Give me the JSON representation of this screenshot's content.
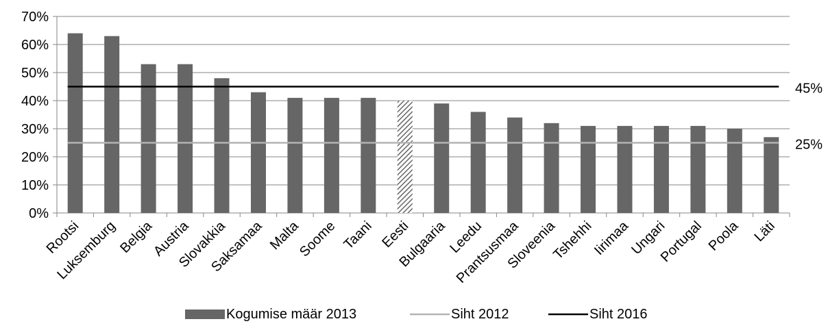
{
  "chart_data": {
    "type": "bar",
    "categories": [
      "Rootsi",
      "Luksemburg",
      "Belgia",
      "Austria",
      "Slovakkia",
      "Saksamaa",
      "Malta",
      "Soome",
      "Taani",
      "Eesti",
      "Bulgaaria",
      "Leedu",
      "Prantsusmaa",
      "Sloveenia",
      "Tshehhi",
      "Iirimaa",
      "Ungari",
      "Portugal",
      "Poola",
      "Läti"
    ],
    "series": [
      {
        "name": "Kogumise määr 2013",
        "values": [
          64,
          63,
          53,
          53,
          48,
          43,
          41,
          41,
          41,
          40,
          39,
          36,
          34,
          32,
          31,
          31,
          31,
          31,
          30,
          27
        ],
        "color": "#666666"
      }
    ],
    "highlight": {
      "category": "Eesti",
      "style": "hatched"
    },
    "targets": [
      {
        "name": "Siht 2012",
        "value": 25,
        "label": "25%",
        "color": "#b3b3b3"
      },
      {
        "name": "Siht 2016",
        "value": 45,
        "label": "45%",
        "color": "#000000"
      }
    ],
    "ylim": [
      0,
      70
    ],
    "yticks": [
      "0%",
      "10%",
      "20%",
      "30%",
      "40%",
      "50%",
      "60%",
      "70%"
    ],
    "grid": true,
    "legend_position": "bottom",
    "title": "",
    "xlabel": "",
    "ylabel": ""
  }
}
